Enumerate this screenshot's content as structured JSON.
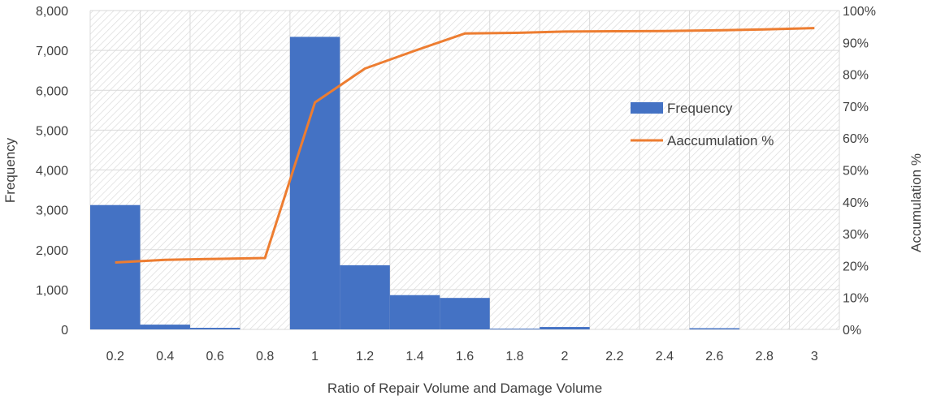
{
  "chart_data": {
    "type": "bar",
    "categories": [
      "0.2",
      "0.4",
      "0.6",
      "0.8",
      "1",
      "1.2",
      "1.4",
      "1.6",
      "1.8",
      "2",
      "2.2",
      "2.4",
      "2.6",
      "2.8",
      "3"
    ],
    "series": [
      {
        "name": "Frequency",
        "kind": "bar",
        "axis": "left",
        "color": "#4472C4",
        "values": [
          3120,
          120,
          40,
          0,
          7340,
          1610,
          860,
          790,
          20,
          60,
          0,
          0,
          30,
          0,
          0
        ]
      },
      {
        "name": "Aaccumulation %",
        "kind": "line",
        "axis": "right",
        "color": "#ED7D31",
        "values": [
          21,
          21.8,
          22.1,
          22.4,
          71.2,
          81.8,
          87.4,
          92.8,
          93.0,
          93.4,
          93.5,
          93.6,
          93.8,
          94.1,
          94.5
        ]
      }
    ],
    "xlabel": "Ratio of Repair Volume and Damage Volume",
    "ylabel": "Frequency",
    "y2label": "Accumulation %",
    "ylim": [
      0,
      8000
    ],
    "y2lim": [
      0,
      100
    ],
    "yticks": [
      "0",
      "1,000",
      "2,000",
      "3,000",
      "4,000",
      "5,000",
      "6,000",
      "7,000",
      "8,000"
    ],
    "y2ticks": [
      "0%",
      "10%",
      "20%",
      "30%",
      "40%",
      "50%",
      "60%",
      "70%",
      "80%",
      "90%",
      "100%"
    ],
    "grid": true,
    "legend": "right-center"
  }
}
